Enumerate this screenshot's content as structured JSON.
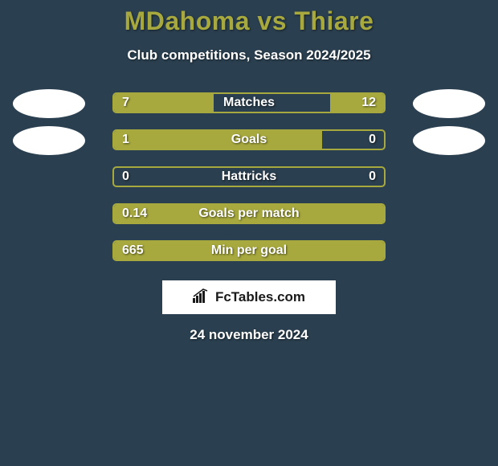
{
  "title": "MDahoma vs Thiare",
  "subtitle": "Club competitions, Season 2024/2025",
  "date": "24 november 2024",
  "logo_text": "FcTables.com",
  "colors": {
    "background": "#2a3f4f",
    "accent": "#a7a93e",
    "text": "#ffffff",
    "avatar": "#ffffff",
    "logo_bg": "#ffffff",
    "logo_text": "#1a1a1a"
  },
  "stats": [
    {
      "label": "Matches",
      "left_value": "7",
      "right_value": "12",
      "left_fill_pct": 36.8,
      "right_fill_pct": 20.0,
      "show_left_avatar": true,
      "show_right_avatar": true
    },
    {
      "label": "Goals",
      "left_value": "1",
      "right_value": "0",
      "left_fill_pct": 77.0,
      "right_fill_pct": 0.0,
      "show_left_avatar": true,
      "show_right_avatar": true
    },
    {
      "label": "Hattricks",
      "left_value": "0",
      "right_value": "0",
      "left_fill_pct": 0.0,
      "right_fill_pct": 0.0,
      "show_left_avatar": false,
      "show_right_avatar": false
    },
    {
      "label": "Goals per match",
      "left_value": "0.14",
      "right_value": "",
      "left_fill_pct": 100.0,
      "right_fill_pct": 0.0,
      "show_left_avatar": false,
      "show_right_avatar": false
    },
    {
      "label": "Min per goal",
      "left_value": "665",
      "right_value": "",
      "left_fill_pct": 100.0,
      "right_fill_pct": 0.0,
      "show_left_avatar": false,
      "show_right_avatar": false
    }
  ]
}
